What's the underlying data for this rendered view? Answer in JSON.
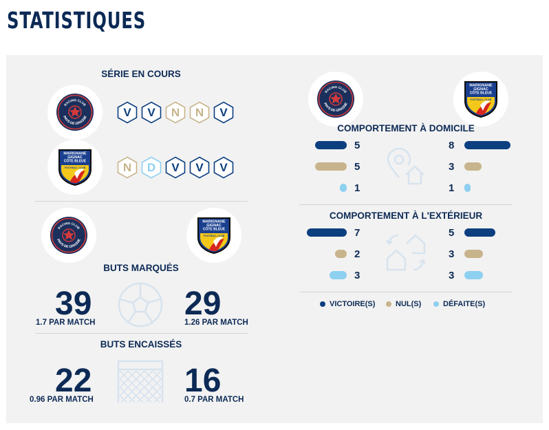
{
  "title": "STATISTIQUES",
  "series": {
    "header": "SÉRIE EN COURS",
    "home": [
      "V",
      "V",
      "N",
      "N",
      "V"
    ],
    "away": [
      "N",
      "D",
      "V",
      "V",
      "V"
    ]
  },
  "goals_for": {
    "header": "BUTS MARQUÉS",
    "home_value": "39",
    "home_per_match": "1.7 PAR MATCH",
    "away_value": "29",
    "away_per_match": "1.26 PAR MATCH"
  },
  "goals_against": {
    "header": "BUTS ENCAISSÉS",
    "home_value": "22",
    "home_per_match": "0.96 PAR MATCH",
    "away_value": "16",
    "away_per_match": "0.7 PAR MATCH"
  },
  "home_behaviour": {
    "header": "COMPORTEMENT À DOMICILE",
    "left": {
      "wins": "5",
      "draws": "5",
      "losses": "1"
    },
    "right": {
      "wins": "8",
      "draws": "3",
      "losses": "1"
    }
  },
  "away_behaviour": {
    "header": "COMPORTEMENT À L'EXTÉRIEUR",
    "left": {
      "wins": "7",
      "draws": "2",
      "losses": "3"
    },
    "right": {
      "wins": "5",
      "draws": "3",
      "losses": "3"
    }
  },
  "legend": {
    "win": "VICTOIRE(S)",
    "draw": "NUL(S)",
    "loss": "DÉFAITE(S)"
  },
  "logos": {
    "home_team_text": [
      "RACING CLUB",
      "PAYS DE GRASSE"
    ],
    "away_team_text": [
      "MARIGNANE",
      "GIGNAC",
      "CÔTE BLEUE",
      "FOOTBALL CLUB"
    ]
  },
  "colors": {
    "win": "#0c3f80",
    "draw": "#c8b48c",
    "loss": "#8dd0f0",
    "text": "#0c2a55",
    "panel": "#f2f2f2"
  }
}
